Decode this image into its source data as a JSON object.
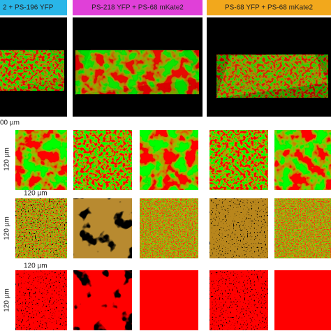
{
  "header": {
    "labels": [
      "2 + PS-196 YFP",
      "PS-218 YFP + PS-68 mKate2",
      "PS-68 YFP + PS-68 mKate2"
    ]
  },
  "scale_labels": {
    "top": "00 µm",
    "row_vertical": [
      "120 µm",
      "120 µm",
      "120 µm"
    ],
    "row_horizontal": [
      "120 µm",
      "120 µm"
    ]
  }
}
